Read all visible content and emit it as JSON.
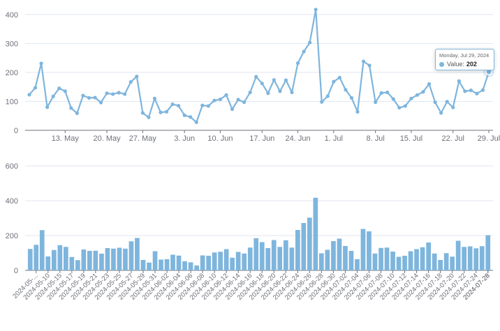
{
  "chart_data": [
    {
      "type": "line",
      "x_start": "2024-05-06",
      "x_end": "2024-07-29",
      "ylim": [
        0,
        450
      ],
      "yticks": [
        0,
        100,
        200,
        300,
        400
      ],
      "xticks": [
        "13. May",
        "20. May",
        "27. May",
        "3. Jun",
        "10. Jun",
        "17. Jun",
        "24. Jun",
        "1. Jul",
        "8. Jul",
        "15. Jul",
        "22. Jul",
        "29. Jul"
      ],
      "grid": true,
      "color": "#7eb5dd",
      "series": [
        {
          "values": [
            123,
            147,
            231,
            80,
            117,
            145,
            135,
            77,
            59,
            120,
            112,
            113,
            96,
            128,
            125,
            130,
            125,
            167,
            186,
            60,
            45,
            110,
            62,
            64,
            90,
            85,
            52,
            46,
            28,
            86,
            84,
            103,
            107,
            122,
            73,
            106,
            97,
            131,
            185,
            162,
            128,
            174,
            135,
            173,
            131,
            232,
            272,
            303,
            417,
            98,
            118,
            168,
            182,
            140,
            112,
            64,
            238,
            224,
            97,
            129,
            131,
            108,
            78,
            84,
            110,
            122,
            133,
            160,
            97,
            60,
            99,
            79,
            170,
            135,
            138,
            127,
            139,
            202
          ]
        }
      ]
    },
    {
      "type": "bar",
      "ylim": [
        0,
        600
      ],
      "yticks": [
        0,
        200,
        400,
        600
      ],
      "categories": [
        "2024-05-...",
        "2024-05-10",
        "2024-05-15",
        "2024-05-17",
        "2024-05-19",
        "2024-05-21",
        "2024-05-23",
        "2024-05-25",
        "2024-05-27",
        "2024-05-29",
        "2024-05-31",
        "2024-06-02",
        "2024-06-04",
        "2024-06-06",
        "2024-06-08",
        "2024-06-10",
        "2024-06-12",
        "2024-06-14",
        "2024-06-16",
        "2024-06-18",
        "2024-06-20",
        "2024-06-22",
        "2024-06-24",
        "2024-06-26",
        "2024-06-28",
        "2024-06-30",
        "2024-07-02",
        "2024-07-04",
        "2024-07-06",
        "2024-07-08",
        "2024-07-10",
        "2024-07-12",
        "2024-07-14",
        "2024-07-16",
        "2024-07-18",
        "2024-07-20",
        "2024-07-22",
        "2024-07-24",
        "2024-07-26",
        "2024-07-28"
      ],
      "color": "#7eb5dd",
      "grid": true
    }
  ],
  "tooltip": {
    "title": "Monday, Jul 29, 2024",
    "label": "Value:",
    "value": "202"
  }
}
